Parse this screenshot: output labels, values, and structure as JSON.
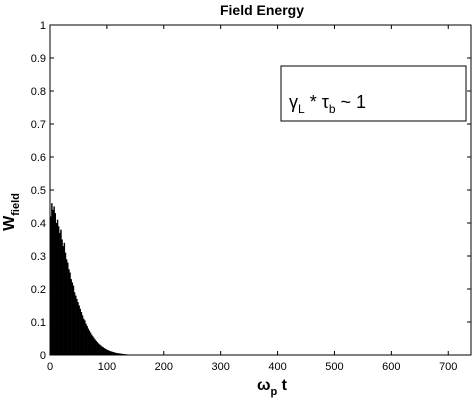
{
  "chart_data": {
    "type": "bar",
    "title": "Field Energy",
    "xlabel": {
      "main": "ω",
      "sub": "p",
      "tail": " t"
    },
    "ylabel": {
      "main": "W",
      "sub": "field"
    },
    "xlim": [
      0,
      740
    ],
    "ylim": [
      0,
      1
    ],
    "xticks": [
      "0",
      "100",
      "200",
      "300",
      "400",
      "500",
      "600",
      "700"
    ],
    "yticks": [
      "0",
      "0.1",
      "0.2",
      "0.3",
      "0.4",
      "0.5",
      "0.6",
      "0.7",
      "0.8",
      "0.9",
      "1"
    ],
    "grid": false,
    "annotation": {
      "g1": "γ",
      "s1": "L",
      "mid": " * ",
      "g2": "τ",
      "s2": "b",
      "tail": " ~ 1"
    },
    "x": [
      1,
      3,
      5,
      7,
      9,
      11,
      13,
      15,
      17,
      19,
      21,
      23,
      25,
      27,
      29,
      31,
      33,
      35,
      37,
      39,
      41,
      43,
      45,
      47,
      49,
      51,
      53,
      55,
      57,
      59,
      61,
      63,
      65,
      67,
      69,
      71,
      73,
      75,
      77,
      79,
      81,
      83,
      85,
      87,
      89,
      91,
      93,
      95,
      97,
      99,
      101,
      103,
      105,
      107,
      109,
      111,
      113,
      115,
      117,
      119,
      121,
      123,
      125,
      127,
      129,
      131,
      133,
      135,
      137,
      139,
      141,
      143,
      145,
      147,
      149
    ],
    "values": [
      0.42,
      0.46,
      0.44,
      0.45,
      0.43,
      0.4,
      0.41,
      0.39,
      0.37,
      0.38,
      0.35,
      0.33,
      0.34,
      0.31,
      0.29,
      0.28,
      0.26,
      0.25,
      0.23,
      0.22,
      0.21,
      0.19,
      0.18,
      0.17,
      0.16,
      0.15,
      0.14,
      0.13,
      0.12,
      0.11,
      0.105,
      0.095,
      0.088,
      0.08,
      0.074,
      0.068,
      0.062,
      0.057,
      0.052,
      0.047,
      0.043,
      0.039,
      0.035,
      0.032,
      0.029,
      0.026,
      0.024,
      0.021,
      0.019,
      0.017,
      0.015,
      0.014,
      0.012,
      0.011,
      0.01,
      0.009,
      0.008,
      0.007,
      0.006,
      0.0055,
      0.005,
      0.0045,
      0.004,
      0.0035,
      0.003,
      0.0026,
      0.0022,
      0.0019,
      0.0016,
      0.0013,
      0.001,
      0.0008,
      0.0006,
      0.0004,
      0.0002
    ]
  }
}
